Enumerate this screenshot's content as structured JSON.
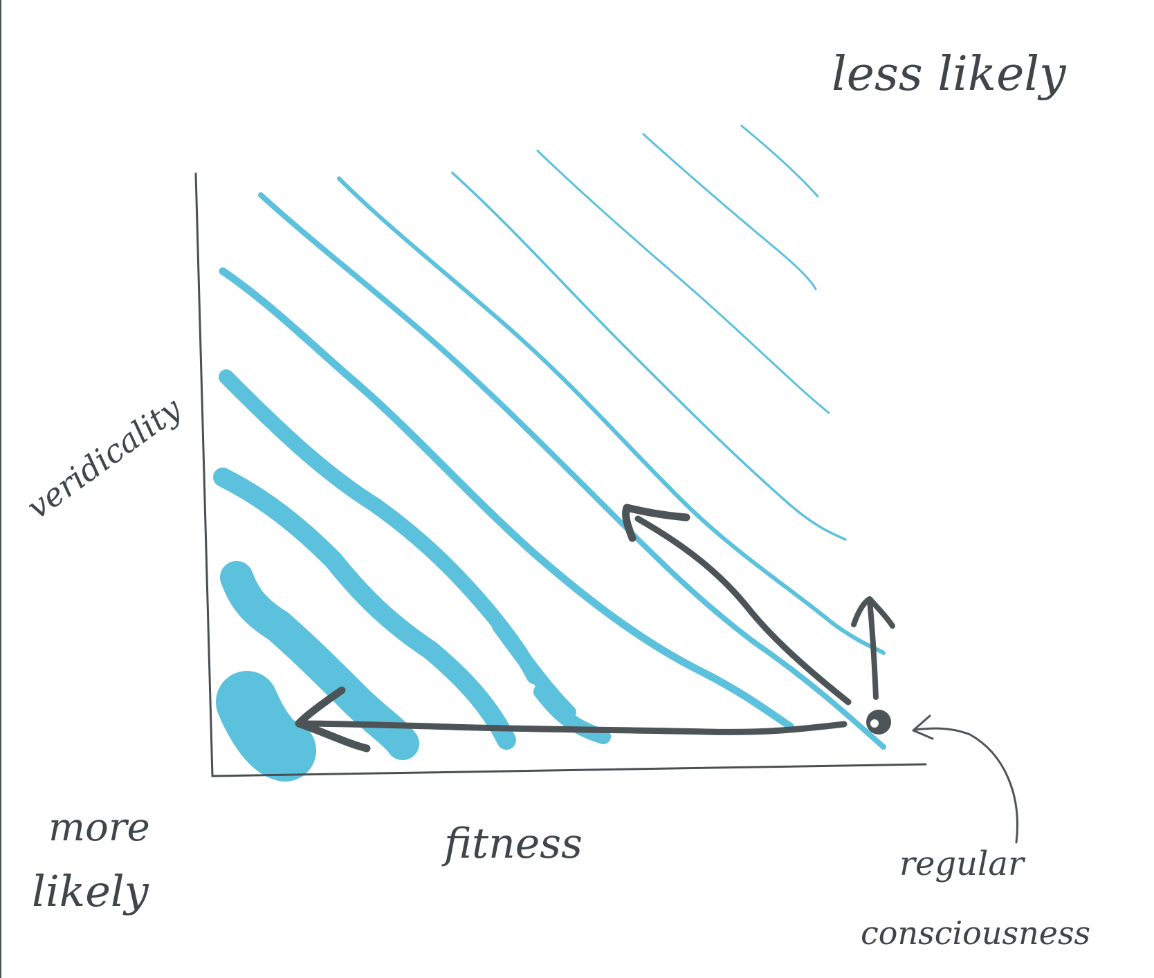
{
  "diagram": {
    "corner_top_right": "less likely",
    "corner_bottom_left_line1": "more",
    "corner_bottom_left_line2": "likely",
    "x_axis_label": "fitness",
    "y_axis_label": "veridicality",
    "point_label_line1": "regular",
    "point_label_line2": "consciousness"
  },
  "colors": {
    "band": "#5cc1dc",
    "ink": "#4d5457",
    "background": "#ffffff"
  }
}
